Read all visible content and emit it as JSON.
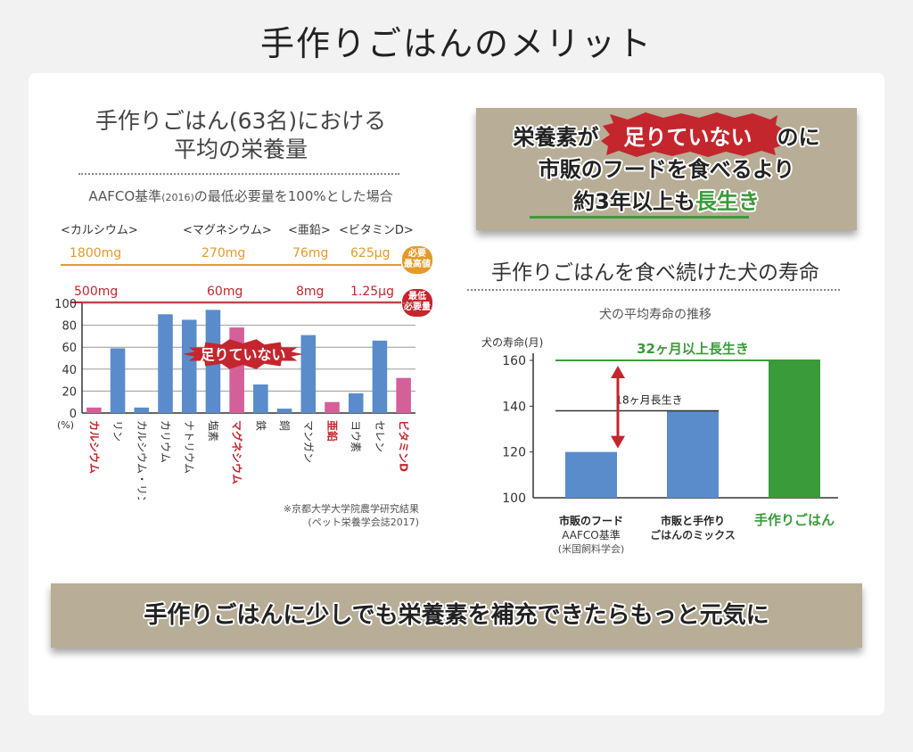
{
  "page": {
    "title": "手作りごはんのメリット"
  },
  "left": {
    "title_line1": "手作りごはん(63名)における",
    "title_line2": "平均の栄養量",
    "aafco_main": "AAFCO基準",
    "aafco_year": "(2016)",
    "aafco_rest": "の最低必要量を100%とした場合",
    "headers": {
      "calcium": "<カルシウム>",
      "magnesium": "<マグネシウム>",
      "zinc": "<亜鉛>",
      "vitd": "<ビタミンD>"
    },
    "max_values": [
      "1800mg",
      "270mg",
      "76mg",
      "625μg"
    ],
    "min_values": [
      "500mg",
      "60mg",
      "8mg",
      "1.25μg"
    ],
    "max_badge": "必要\n最高値",
    "min_badge": "最低\n必要量",
    "burst_label": "足りていない",
    "note_line1": "※京都大学大学院農学研究結果",
    "note_line2": "(ペット栄養学会誌2017)"
  },
  "right": {
    "banner_top_pre": "栄養素が",
    "banner_top_burst": "足りていない",
    "banner_top_post": "のに",
    "banner_line2": "市販のフードを食べるより",
    "banner_line3_pre": "約3年以上も",
    "banner_line3_green": "長生き",
    "title": "手作りごはんを食べ続けた犬の寿命",
    "subtitle": "犬の平均寿命の推移"
  },
  "bottom_banner": "手作りごはんに少しでも栄養素を補充できたらもっと元気に",
  "colors": {
    "blue": "#5a8ccc",
    "pink": "#d4609a",
    "red": "#c4262e",
    "orange": "#e39a2a",
    "green": "#3a9b3a",
    "banner": "#b8ad96"
  },
  "chart_data": [
    {
      "type": "bar",
      "ylabel": "(%)",
      "ylim": [
        0,
        100
      ],
      "yticks": [
        0,
        20,
        40,
        60,
        80,
        100
      ],
      "grid": true,
      "categories": [
        "カルシウム",
        "リン",
        "カルシウム・リン比率",
        "カリウム",
        "ナトリウム",
        "塩素",
        "マグネシウム",
        "鉄",
        "銅",
        "マンガン",
        "亜鉛",
        "ヨウ素",
        "セレン",
        "ビタミンD"
      ],
      "values": [
        5,
        59,
        5,
        90,
        85,
        94,
        78,
        26,
        4,
        71,
        10,
        18,
        66,
        32
      ],
      "highlight": [
        true,
        false,
        false,
        false,
        false,
        false,
        true,
        false,
        false,
        false,
        true,
        false,
        false,
        true
      ]
    },
    {
      "type": "bar",
      "ylabel": "犬の寿命(月)",
      "ylim": [
        100,
        160
      ],
      "yticks": [
        100,
        120,
        140,
        160
      ],
      "grid": true,
      "categories": [
        {
          "line1": "市販のフード",
          "line2": "AAFCO基準",
          "line3": "(米国飼料学会)"
        },
        {
          "line1": "市販と手作り",
          "line2": "ごはんのミックス",
          "line3": ""
        },
        {
          "line1": "手作りごはん",
          "line2": "",
          "line3": ""
        }
      ],
      "values": [
        120,
        138,
        160
      ],
      "annotations": [
        "18ヶ月長生き",
        "32ヶ月以上長生き"
      ]
    }
  ]
}
